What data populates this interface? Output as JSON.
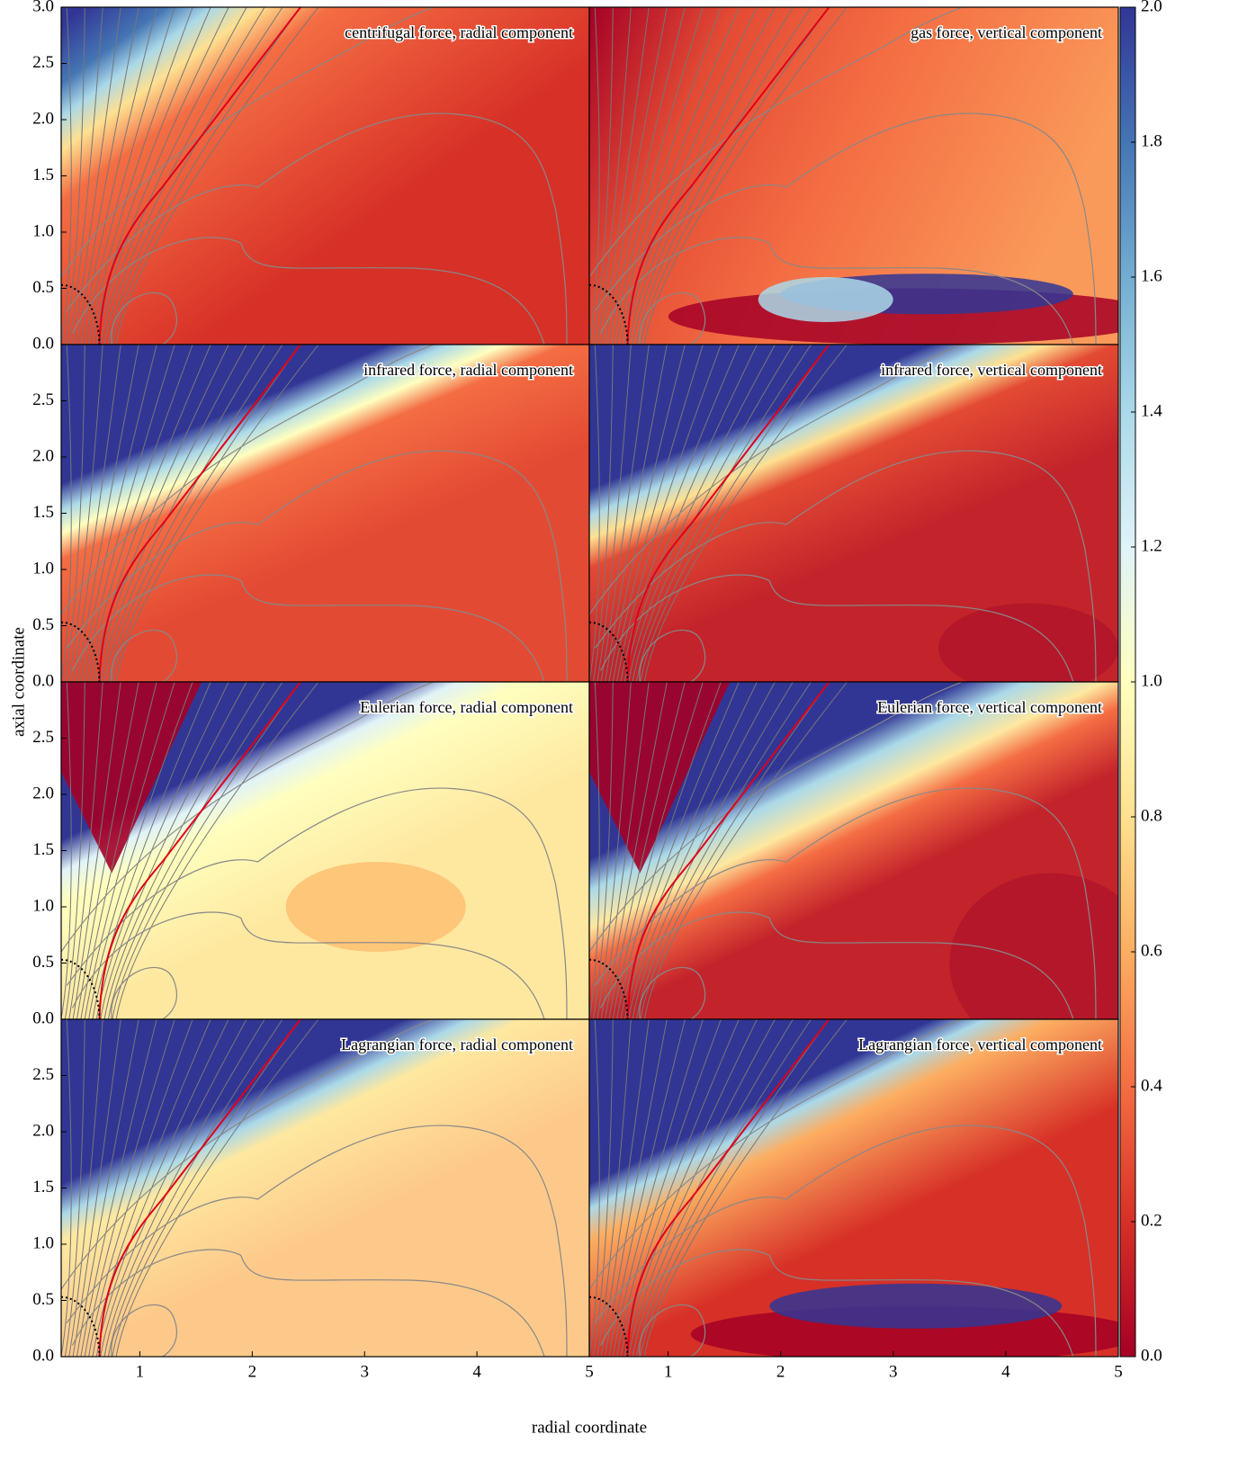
{
  "figure": {
    "xlabel": "radial coordinate",
    "ylabel": "axial coordinate",
    "colorbar": {
      "clim": [
        0,
        2
      ],
      "ticks": [
        {
          "value": 0,
          "label": "0.0"
        },
        {
          "value": 0.2,
          "label": "0.2"
        },
        {
          "value": 0.4,
          "label": "0.4"
        },
        {
          "value": 0.6,
          "label": "0.6"
        },
        {
          "value": 0.8,
          "label": "0.8"
        },
        {
          "value": 1,
          "label": "1.0"
        },
        {
          "value": 1.2,
          "label": "1.2"
        },
        {
          "value": 1.4,
          "label": "1.4"
        },
        {
          "value": 1.6,
          "label": "1.6"
        },
        {
          "value": 1.8,
          "label": "1.8"
        },
        {
          "value": 2,
          "label": "2.0"
        }
      ]
    }
  },
  "chart_data": [
    {
      "type": "heatmap",
      "title": "centrifugal force, radial component",
      "xlim": [
        0.3,
        5
      ],
      "ylim": [
        0,
        3
      ],
      "yticks": [
        {
          "value": 0,
          "label": "0.0"
        },
        {
          "value": 0.5,
          "label": "0.5"
        },
        {
          "value": 1,
          "label": "1.0"
        },
        {
          "value": 1.5,
          "label": "1.5"
        },
        {
          "value": 2,
          "label": "2.0"
        },
        {
          "value": 2.5,
          "label": "2.5"
        },
        {
          "value": 3,
          "label": "3.0"
        }
      ]
    },
    {
      "type": "heatmap",
      "title": "gas force, vertical component",
      "xlim": [
        0.3,
        5
      ],
      "ylim": [
        0,
        3
      ]
    },
    {
      "type": "heatmap",
      "title": "infrared force, radial component",
      "xlim": [
        0.3,
        5
      ],
      "ylim": [
        0,
        3
      ],
      "yticks": [
        {
          "value": 0,
          "label": "0.0"
        },
        {
          "value": 0.5,
          "label": "0.5"
        },
        {
          "value": 1,
          "label": "1.0"
        },
        {
          "value": 1.5,
          "label": "1.5"
        },
        {
          "value": 2,
          "label": "2.0"
        },
        {
          "value": 2.5,
          "label": "2.5"
        }
      ]
    },
    {
      "type": "heatmap",
      "title": "infrared force, vertical component",
      "xlim": [
        0.3,
        5
      ],
      "ylim": [
        0,
        3
      ]
    },
    {
      "type": "heatmap",
      "title": "Eulerian force, radial component",
      "xlim": [
        0.3,
        5
      ],
      "ylim": [
        0,
        3
      ],
      "yticks": [
        {
          "value": 0,
          "label": "0.0"
        },
        {
          "value": 0.5,
          "label": "0.5"
        },
        {
          "value": 1,
          "label": "1.0"
        },
        {
          "value": 1.5,
          "label": "1.5"
        },
        {
          "value": 2,
          "label": "2.0"
        },
        {
          "value": 2.5,
          "label": "2.5"
        }
      ]
    },
    {
      "type": "heatmap",
      "title": "Eulerian force, vertical component",
      "xlim": [
        0.3,
        5
      ],
      "ylim": [
        0,
        3
      ]
    },
    {
      "type": "heatmap",
      "title": "Lagrangian force, radial component",
      "xlim": [
        0.3,
        5
      ],
      "ylim": [
        0,
        3
      ],
      "yticks": [
        {
          "value": 0,
          "label": "0.0"
        },
        {
          "value": 0.5,
          "label": "0.5"
        },
        {
          "value": 1,
          "label": "1.0"
        },
        {
          "value": 1.5,
          "label": "1.5"
        },
        {
          "value": 2,
          "label": "2.0"
        },
        {
          "value": 2.5,
          "label": "2.5"
        }
      ],
      "xticks": [
        1,
        2,
        3,
        4,
        5
      ]
    },
    {
      "type": "heatmap",
      "title": "Lagrangian force, vertical component",
      "xlim": [
        0.3,
        5
      ],
      "ylim": [
        0,
        3
      ],
      "xticks": [
        1,
        2,
        3,
        4,
        5
      ]
    }
  ]
}
